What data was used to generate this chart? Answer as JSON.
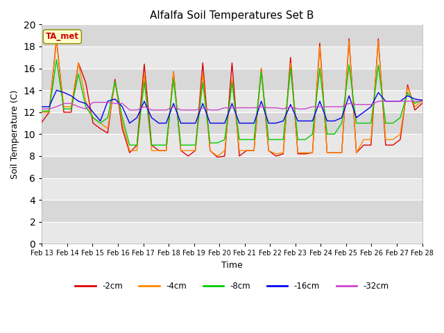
{
  "title": "Alfalfa Soil Temperatures Set B",
  "xlabel": "Time",
  "ylabel": "Soil Temperature (C)",
  "ylim": [
    0,
    20
  ],
  "yticks": [
    0,
    2,
    4,
    6,
    8,
    10,
    12,
    14,
    16,
    18,
    20
  ],
  "bg_color_light": "#e8e8e8",
  "bg_color_dark": "#d8d8d8",
  "fig_color": "#ffffff",
  "annotation_text": "TA_met",
  "annotation_color": "#cc0000",
  "annotation_bg": "#ffffcc",
  "annotation_border": "#888800",
  "legend_entries": [
    "-2cm",
    "-4cm",
    "-8cm",
    "-16cm",
    "-32cm"
  ],
  "line_colors": [
    "#dd0000",
    "#ff8800",
    "#00cc00",
    "#0000ee",
    "#cc44cc"
  ],
  "line_widths": [
    1.0,
    1.0,
    1.0,
    1.0,
    1.0
  ],
  "n_days": 16,
  "x_labels": [
    "Feb 13",
    "Feb 14",
    "Feb 15",
    "Feb 16",
    "Feb 17",
    "Feb 18",
    "Feb 19",
    "Feb 20",
    "Feb 21",
    "Feb 22",
    "Feb 23",
    "Feb 24",
    "Feb 25",
    "Feb 26",
    "Feb 27",
    "Feb 28"
  ],
  "series": {
    "neg2cm": [
      11.1,
      12.0,
      18.7,
      12.0,
      12.0,
      16.5,
      14.7,
      11.0,
      10.5,
      10.1,
      15.0,
      10.5,
      8.3,
      9.0,
      16.4,
      9.0,
      8.5,
      8.5,
      15.7,
      8.5,
      8.0,
      8.5,
      16.5,
      8.5,
      7.9,
      8.0,
      16.5,
      8.0,
      8.5,
      8.5,
      16.0,
      8.5,
      8.0,
      8.2,
      17.0,
      8.2,
      8.2,
      8.3,
      18.3,
      8.3,
      8.3,
      8.3,
      18.7,
      8.3,
      9.0,
      9.0,
      18.7,
      9.0,
      9.0,
      9.5,
      14.5,
      12.2,
      12.8
    ],
    "neg4cm": [
      12.0,
      12.0,
      18.5,
      12.5,
      12.5,
      16.5,
      13.0,
      11.5,
      11.0,
      10.5,
      14.8,
      11.0,
      8.5,
      8.5,
      15.5,
      8.5,
      8.5,
      8.5,
      15.7,
      8.5,
      8.5,
      8.5,
      15.5,
      8.5,
      8.0,
      8.5,
      15.0,
      8.5,
      8.5,
      8.5,
      16.0,
      8.5,
      8.2,
      8.3,
      16.5,
      8.3,
      8.3,
      8.3,
      18.0,
      8.3,
      8.3,
      8.3,
      18.5,
      8.3,
      9.5,
      9.5,
      18.5,
      9.5,
      9.5,
      10.0,
      14.3,
      12.5,
      13.0
    ],
    "neg8cm": [
      12.1,
      12.1,
      16.8,
      12.3,
      12.3,
      15.5,
      12.5,
      11.5,
      11.0,
      11.5,
      14.8,
      11.5,
      9.0,
      9.0,
      14.8,
      9.0,
      9.0,
      9.0,
      15.0,
      9.0,
      9.0,
      9.0,
      14.7,
      9.2,
      9.2,
      9.5,
      14.7,
      9.5,
      9.5,
      9.5,
      15.7,
      9.5,
      9.5,
      9.5,
      16.0,
      9.5,
      9.5,
      10.0,
      16.0,
      10.0,
      10.0,
      11.0,
      16.3,
      11.0,
      11.0,
      11.0,
      16.3,
      11.0,
      11.0,
      11.5,
      13.8,
      12.8,
      13.1
    ],
    "neg16cm": [
      12.5,
      12.5,
      14.0,
      13.8,
      13.5,
      13.0,
      12.8,
      12.0,
      11.2,
      13.0,
      13.2,
      12.5,
      11.0,
      11.5,
      13.0,
      11.5,
      11.0,
      11.0,
      12.8,
      11.0,
      11.0,
      11.0,
      12.8,
      11.0,
      11.0,
      11.0,
      12.8,
      11.0,
      11.0,
      11.0,
      13.0,
      11.0,
      11.0,
      11.2,
      12.7,
      11.2,
      11.2,
      11.2,
      13.0,
      11.2,
      11.2,
      11.5,
      13.5,
      11.5,
      12.0,
      12.5,
      13.8,
      13.0,
      13.0,
      13.0,
      13.5,
      13.2,
      13.1
    ],
    "neg32cm": [
      12.3,
      12.3,
      12.5,
      12.8,
      12.8,
      12.5,
      12.3,
      12.9,
      12.9,
      12.9,
      12.8,
      12.8,
      12.2,
      12.2,
      12.5,
      12.2,
      12.2,
      12.2,
      12.5,
      12.2,
      12.2,
      12.2,
      12.4,
      12.2,
      12.2,
      12.4,
      12.4,
      12.4,
      12.4,
      12.4,
      12.5,
      12.4,
      12.4,
      12.3,
      12.5,
      12.3,
      12.3,
      12.5,
      12.5,
      12.5,
      12.5,
      12.5,
      12.8,
      12.7,
      12.7,
      12.7,
      13.0,
      13.0,
      13.0,
      13.0,
      13.0,
      13.0,
      13.0
    ]
  }
}
